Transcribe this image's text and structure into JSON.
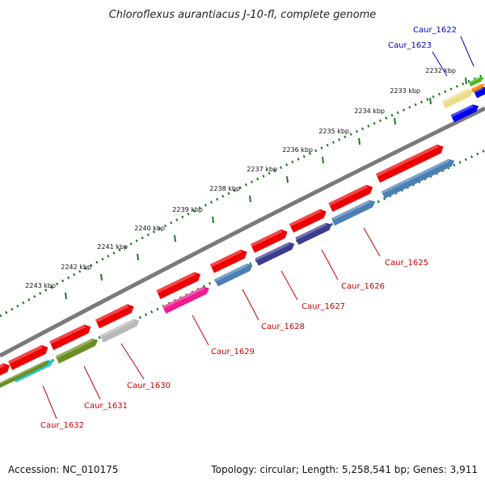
{
  "title": "Chloroflexus aurantiacus J-10-fl, complete genome",
  "footer": {
    "accession": "Accession: NC_010175",
    "topology": "Topology: circular; Length: 5,258,541 bp; Genes: 3,911"
  },
  "ticks": [
    "2232 kbp",
    "2233 kbp",
    "2234 kbp",
    "2235 kbp",
    "2236 kbp",
    "2237 kbp",
    "2238 kbp",
    "2239 kbp",
    "2240 kbp",
    "2241 kbp",
    "2242 kbp",
    "2243 kbp"
  ],
  "genes": [
    {
      "name": "Caur_1622",
      "color": "#0000cc"
    },
    {
      "name": "Caur_1623",
      "color": "#0000cc"
    },
    {
      "name": "Caur_1625",
      "color": "#cc0000"
    },
    {
      "name": "Caur_1626",
      "color": "#cc0000"
    },
    {
      "name": "Caur_1627",
      "color": "#cc0000"
    },
    {
      "name": "Caur_1628",
      "color": "#cc0000"
    },
    {
      "name": "Caur_1629",
      "color": "#cc0000"
    },
    {
      "name": "Caur_1630",
      "color": "#cc0000"
    },
    {
      "name": "Caur_1631",
      "color": "#cc0000"
    },
    {
      "name": "Caur_1632",
      "color": "#cc0000"
    }
  ],
  "colors": {
    "backbone": "#7a7a7a",
    "tick_ring": "#1a7a1a",
    "cds_red": "#ee0000",
    "steelblue": "#4a7fb5",
    "darkslateblue": "#3b3b8f",
    "olive": "#6b8e23",
    "cyan": "#22c8d8",
    "magenta": "#ee1c8c",
    "silver": "#b8b8b8",
    "khaki": "#eedd88",
    "blue": "#0000ee",
    "green": "#44bb22",
    "orange": "#ff8800"
  }
}
